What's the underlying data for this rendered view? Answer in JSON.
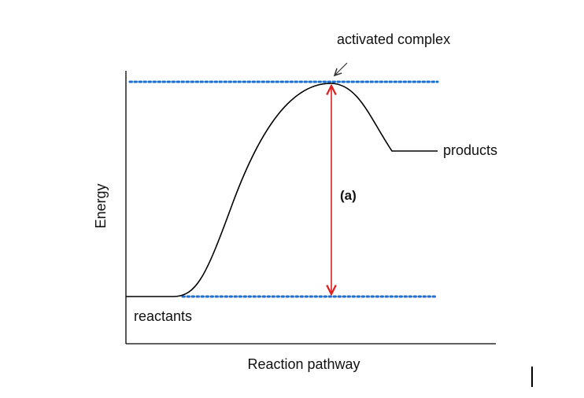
{
  "diagram": {
    "y_axis_label": "Energy",
    "x_axis_label": "Reaction pathway",
    "labels": {
      "activated_complex": "activated complex",
      "products": "products",
      "reactants": "reactants",
      "activation_energy_marker": "(a)"
    }
  },
  "colors": {
    "axis": "#000000",
    "curve": "#000000",
    "dotted_reference": "#1f6fd1",
    "activation_arrow": "#e02020",
    "pointer_arrow": "#333333"
  }
}
